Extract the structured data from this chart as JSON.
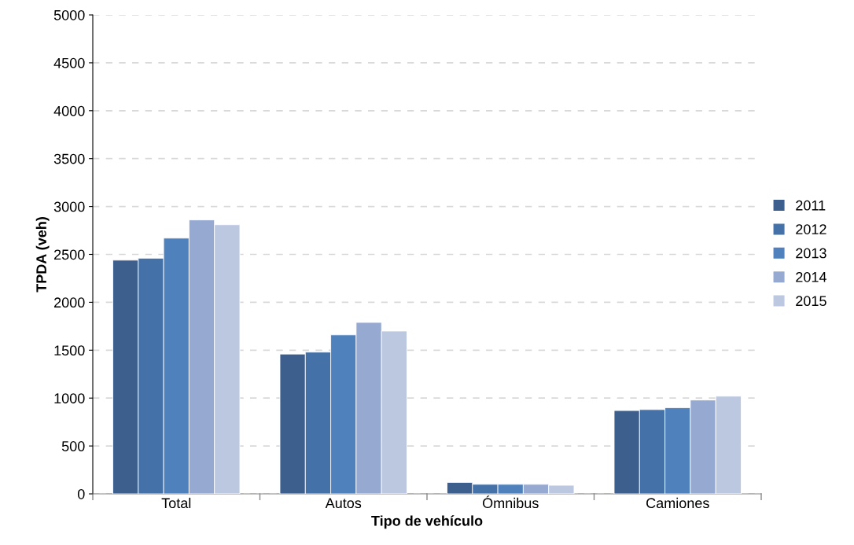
{
  "chart_data": {
    "type": "bar",
    "xlabel": "Tipo de vehículo",
    "ylabel": "TPDA (veh)",
    "categories": [
      "Total",
      "Autos",
      "Ómnibus",
      "Camiones"
    ],
    "series": [
      {
        "name": "2011",
        "color": "#3c5f8e",
        "values": [
          2440,
          1460,
          120,
          870
        ]
      },
      {
        "name": "2012",
        "color": "#4472a8",
        "values": [
          2460,
          1480,
          100,
          880
        ]
      },
      {
        "name": "2013",
        "color": "#4f81bd",
        "values": [
          2670,
          1660,
          100,
          900
        ]
      },
      {
        "name": "2014",
        "color": "#95a9d1",
        "values": [
          2860,
          1790,
          100,
          980
        ]
      },
      {
        "name": "2015",
        "color": "#bcc8e0",
        "values": [
          2810,
          1700,
          90,
          1020
        ]
      }
    ],
    "ylim": [
      0,
      5000
    ],
    "yticks": [
      0,
      500,
      1000,
      1500,
      2000,
      2500,
      3000,
      3500,
      4000,
      4500,
      5000
    ],
    "grid": "y",
    "legend": "right"
  }
}
